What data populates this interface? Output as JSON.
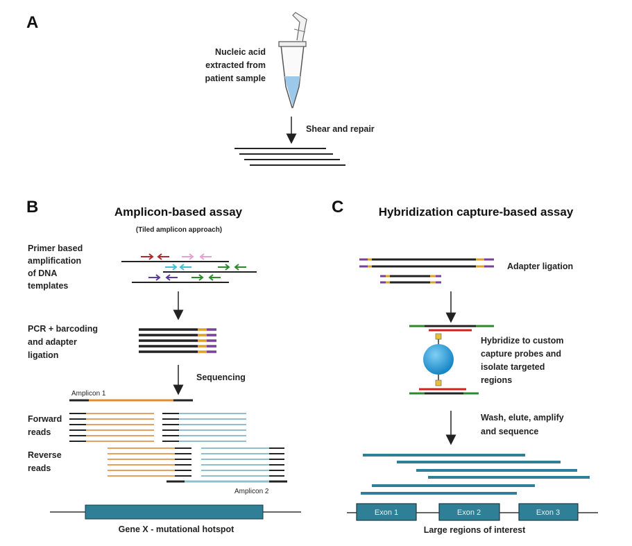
{
  "panel_a": {
    "letter": "A",
    "tube_label": [
      "Nucleic acid",
      "extracted from",
      "patient sample"
    ],
    "step_label": "Shear and repair"
  },
  "panel_b": {
    "letter": "B",
    "title": "Amplicon-based assay",
    "subtitle": "(Tiled amplicon approach)",
    "primer_label": [
      "Primer  based",
      "amplification",
      "of DNA",
      "templates"
    ],
    "pcr_label": [
      "PCR + barcoding",
      "and adapter",
      "ligation"
    ],
    "sequencing_label": "Sequencing",
    "amplicon1_label": "Amplicon 1",
    "amplicon2_label": "Amplicon 2",
    "forward_label": [
      "Forward",
      "reads"
    ],
    "reverse_label": [
      "Reverse",
      "reads"
    ],
    "gene_label": "Gene X - mutational hotspot"
  },
  "panel_c": {
    "letter": "C",
    "title": "Hybridization capture-based assay",
    "adapter_label": "Adapter ligation",
    "hybridize_label": [
      "Hybridize to custom",
      "capture probes and",
      "isolate targeted",
      "regions"
    ],
    "wash_label": [
      "Wash, elute, amplify",
      "and sequence"
    ],
    "exons": [
      "Exon 1",
      "Exon 2",
      "Exon 3"
    ],
    "regions_label": "Large regions of interest"
  },
  "colors": {
    "dna": "#222222",
    "adapter_orange": "#e0a020",
    "adapter_purple": "#7a3e9d",
    "teal": "#2f7f96",
    "orange_read": "#e8a060",
    "lightblue_read": "#8fbfcc",
    "bead": "#1e9ad6",
    "primer_red": "#b02a2a",
    "primer_pink": "#e8a0d0",
    "primer_cyan": "#40c0d0",
    "primer_green": "#2a8a2a",
    "primer_purple": "#5a3a9a",
    "tube_liquid": "#9cc8ea"
  }
}
